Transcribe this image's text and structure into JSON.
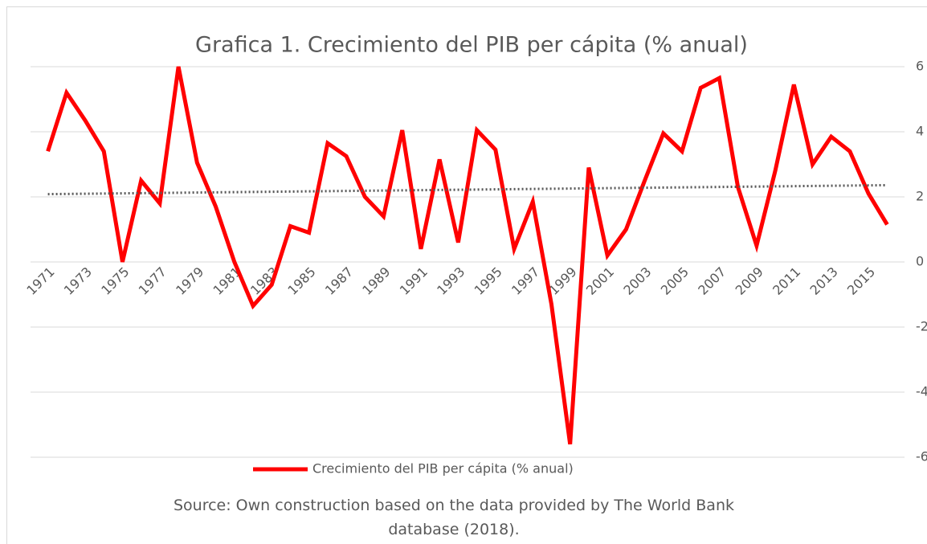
{
  "chart_data": {
    "type": "line",
    "title": "Grafica 1. Crecimiento del PIB per cápita (% anual)",
    "note": "Source: Own construction based on the data provided by The World Bank database (2018).",
    "x": [
      1971,
      1972,
      1973,
      1974,
      1975,
      1976,
      1977,
      1978,
      1979,
      1980,
      1981,
      1982,
      1983,
      1984,
      1985,
      1986,
      1987,
      1988,
      1989,
      1990,
      1991,
      1992,
      1993,
      1994,
      1995,
      1996,
      1997,
      1998,
      1999,
      2000,
      2001,
      2002,
      2003,
      2004,
      2005,
      2006,
      2007,
      2008,
      2009,
      2010,
      2011,
      2012,
      2013,
      2014,
      2015,
      2016
    ],
    "series": [
      {
        "name": "Crecimiento del PIB per cápita (% anual)",
        "color": "#ff0000",
        "values": [
          3.4,
          5.2,
          4.35,
          3.4,
          0.0,
          2.5,
          1.8,
          6.0,
          3.05,
          1.7,
          0.0,
          -1.35,
          -0.7,
          1.1,
          0.9,
          3.65,
          3.25,
          2.0,
          1.4,
          4.05,
          0.4,
          3.15,
          0.6,
          4.05,
          3.45,
          0.4,
          1.85,
          -1.3,
          -5.6,
          2.9,
          0.2,
          1.0,
          2.5,
          3.95,
          3.4,
          5.35,
          5.65,
          2.3,
          0.5,
          2.8,
          5.45,
          3.0,
          3.85,
          3.4,
          2.1,
          1.15
        ]
      }
    ],
    "trendline": true,
    "xlim": [
      1970.5,
      2016.5
    ],
    "xticks": [
      1971,
      1973,
      1975,
      1977,
      1979,
      1981,
      1983,
      1985,
      1987,
      1989,
      1991,
      1993,
      1995,
      1997,
      1999,
      2001,
      2003,
      2005,
      2007,
      2009,
      2011,
      2013,
      2015
    ],
    "ylim": [
      -6,
      6
    ],
    "yticks": [
      -6,
      -4,
      -2,
      0,
      2,
      4,
      6
    ],
    "grid": true,
    "legend": "bottom"
  }
}
